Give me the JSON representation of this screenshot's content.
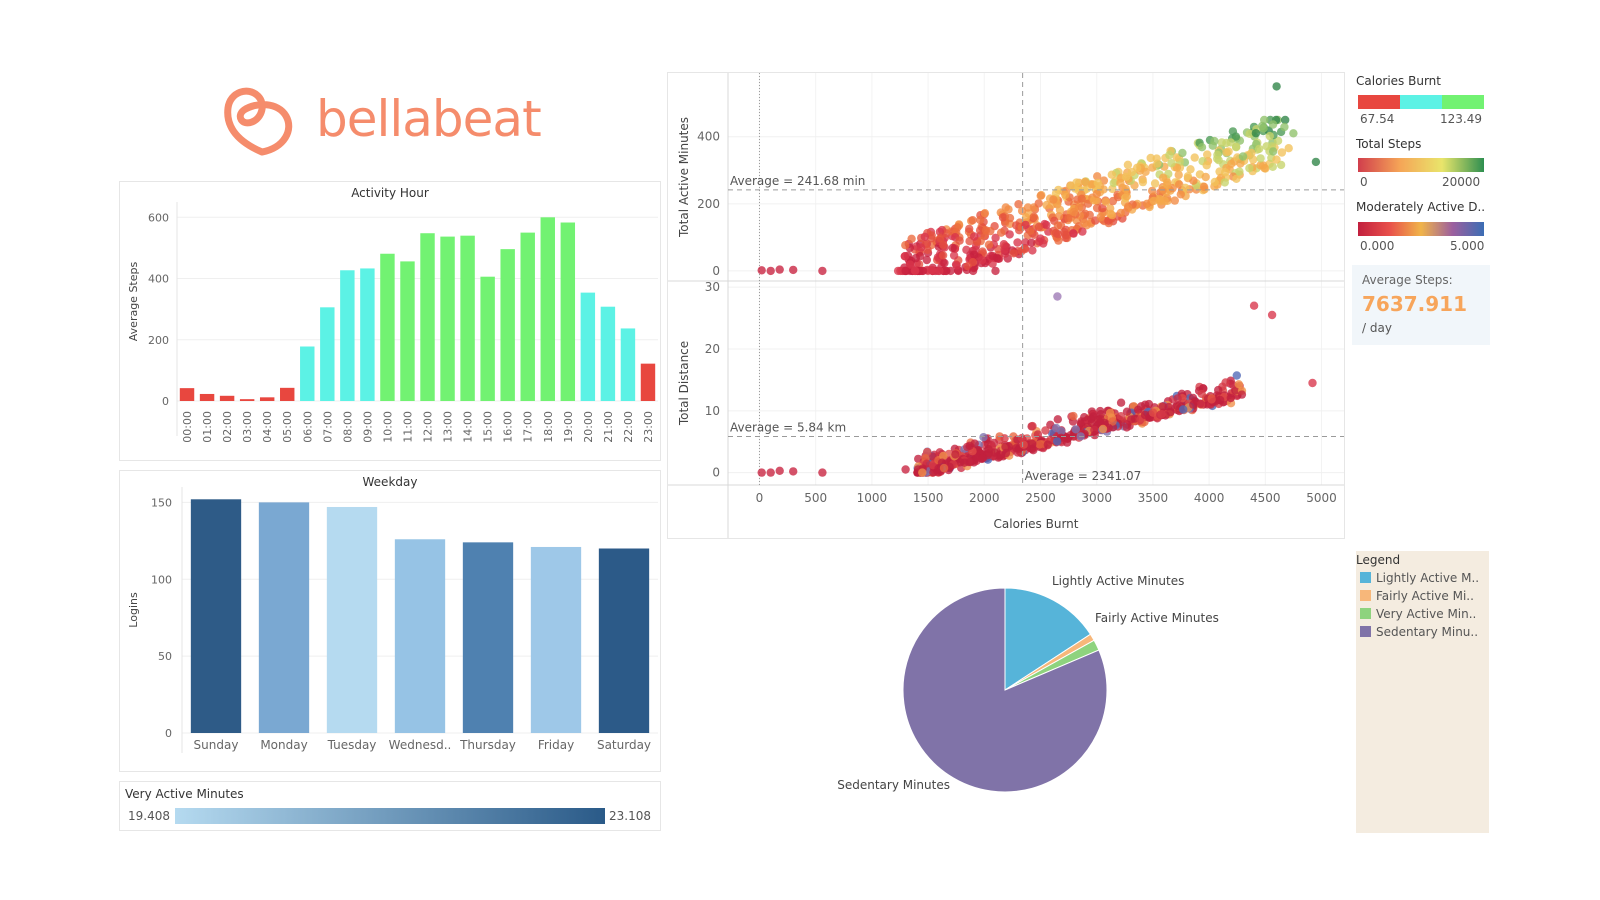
{
  "brand": {
    "name": "bellabeat",
    "color": "#f58c6c"
  },
  "activity_hour": {
    "title": "Activity Hour",
    "ylabel": "Average Steps",
    "ylim": [
      0,
      650
    ],
    "yticks": [
      0,
      200,
      400,
      600
    ],
    "categories": [
      "00:00",
      "01:00",
      "02:00",
      "03:00",
      "04:00",
      "05:00",
      "06:00",
      "07:00",
      "08:00",
      "09:00",
      "10:00",
      "11:00",
      "12:00",
      "13:00",
      "14:00",
      "15:00",
      "16:00",
      "17:00",
      "18:00",
      "19:00",
      "20:00",
      "21:00",
      "22:00",
      "23:00"
    ],
    "values": [
      42,
      23,
      17,
      6,
      12,
      43,
      178,
      306,
      427,
      433,
      481,
      456,
      548,
      537,
      540,
      406,
      496,
      550,
      600,
      583,
      354,
      308,
      237,
      122
    ],
    "colors": [
      "#e8473f",
      "#e8473f",
      "#e8473f",
      "#e8473f",
      "#e8473f",
      "#e8473f",
      "#5cf2e5",
      "#5cf2e5",
      "#5cf2e5",
      "#5cf2e5",
      "#72f272",
      "#72f272",
      "#72f272",
      "#72f272",
      "#72f272",
      "#72f272",
      "#72f272",
      "#72f272",
      "#72f272",
      "#72f272",
      "#5cf2e5",
      "#5cf2e5",
      "#5cf2e5",
      "#e8473f"
    ]
  },
  "weekday": {
    "title": "Weekday",
    "ylabel": "Logins",
    "ylim": [
      0,
      160
    ],
    "yticks": [
      0,
      50,
      100,
      150
    ],
    "categories": [
      "Sunday",
      "Monday",
      "Tuesday",
      "Wednesd..",
      "Thursday",
      "Friday",
      "Saturday"
    ],
    "values": [
      152,
      150,
      147,
      126,
      124,
      121,
      120
    ],
    "colors": [
      "#2e5b87",
      "#7aa8d2",
      "#b5daf0",
      "#96c3e5",
      "#4f81b0",
      "#9ec8e8",
      "#2c5a88"
    ]
  },
  "very_active_legend": {
    "title": "Very Active Minutes",
    "min_label": "19.408",
    "max_label": "23.108",
    "color_from": "#b5daf0",
    "color_to": "#2a5a88"
  },
  "scatter": {
    "xlabel": "Calories Burnt",
    "xticks": [
      0,
      500,
      1000,
      1500,
      2000,
      2500,
      3000,
      3500,
      4000,
      4500,
      5000
    ],
    "xlim": [
      -280,
      5200
    ],
    "avg_calories": 2341.07,
    "avg_calories_label": "Average = 2341.07",
    "top": {
      "ylabel": "Total Active Minutes",
      "yticks": [
        0,
        200,
        400
      ],
      "ylim": [
        -30,
        590
      ],
      "avg": 241.68,
      "avg_label": "Average = 241.68 min"
    },
    "bottom": {
      "ylabel": "Total Distance",
      "yticks": [
        0,
        10,
        20,
        30
      ],
      "ylim": [
        -2,
        31
      ],
      "avg": 5.84,
      "avg_label": "Average = 5.84 km"
    }
  },
  "pie": {
    "slices": [
      {
        "name": "Lightly Active Minutes",
        "value": 15.8,
        "color": "#56b4d9"
      },
      {
        "name": "Fairly Active Minutes",
        "value": 1.1,
        "color": "#f7b77a"
      },
      {
        "name": "Very Active Minutes",
        "value": 1.7,
        "color": "#8ed37e"
      },
      {
        "name": "Sedentary Minutes",
        "value": 81.4,
        "color": "#8073a8"
      }
    ]
  },
  "legends": {
    "calories": {
      "title": "Calories Burnt",
      "min": "67.54",
      "max": "123.49",
      "colors": [
        "#e8473f",
        "#5cf2e5",
        "#72f272"
      ]
    },
    "steps": {
      "title": "Total Steps",
      "min": "0",
      "max": "20000",
      "colors": [
        "#d13e4c",
        "#f5a557",
        "#e9e56b",
        "#2e8f50"
      ]
    },
    "moderate": {
      "title": "Moderately Active D..",
      "min": "0.000",
      "max": "5.000",
      "colors": [
        "#c2203e",
        "#e8504b",
        "#f0b44a",
        "#9c5f9e",
        "#3b6db4"
      ]
    }
  },
  "avg_steps": {
    "label": "Average Steps:",
    "value": "7637.911",
    "unit": "/ day"
  },
  "pie_legend": {
    "title": "Legend",
    "items": [
      {
        "label": "Lightly Active M..",
        "color": "#56b4d9"
      },
      {
        "label": "Fairly Active Mi..",
        "color": "#f7b77a"
      },
      {
        "label": "Very Active Min..",
        "color": "#8ed37e"
      },
      {
        "label": "Sedentary Minu..",
        "color": "#8073a8"
      }
    ]
  }
}
